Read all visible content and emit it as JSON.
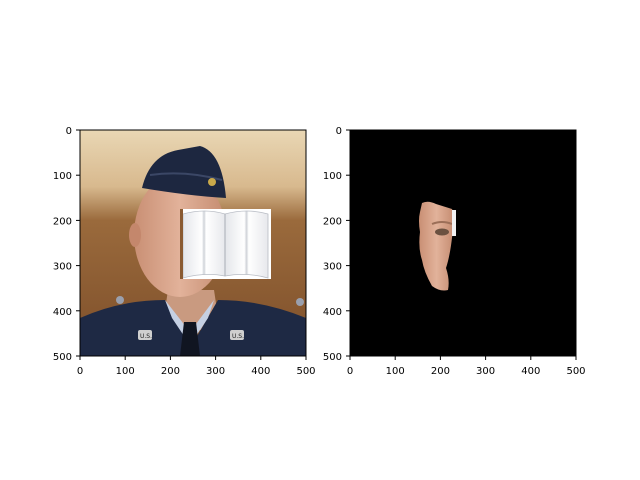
{
  "figure": {
    "panels": [
      {
        "name": "original-photo-with-book-occluder",
        "xticks": [
          "0",
          "100",
          "200",
          "300",
          "400",
          "500"
        ],
        "yticks": [
          "0",
          "100",
          "200",
          "300",
          "400",
          "500"
        ],
        "xlim": [
          0,
          500
        ],
        "ylim": [
          500,
          0
        ],
        "insignia_text": "U.S."
      },
      {
        "name": "segmented-face-mask",
        "xticks": [
          "0",
          "100",
          "200",
          "300",
          "400",
          "500"
        ],
        "yticks": [
          "0",
          "100",
          "200",
          "300",
          "400",
          "500"
        ],
        "xlim": [
          0,
          500
        ],
        "ylim": [
          500,
          0
        ],
        "background": "#000000"
      }
    ],
    "colors": {
      "wall_top": "#e6d1aa",
      "wall_bottom": "#8a5a31",
      "uniform": "#1f2a45",
      "skin": "#d49f86",
      "shirt": "#c8d2e4",
      "book_page": "#f4f4f6"
    }
  }
}
